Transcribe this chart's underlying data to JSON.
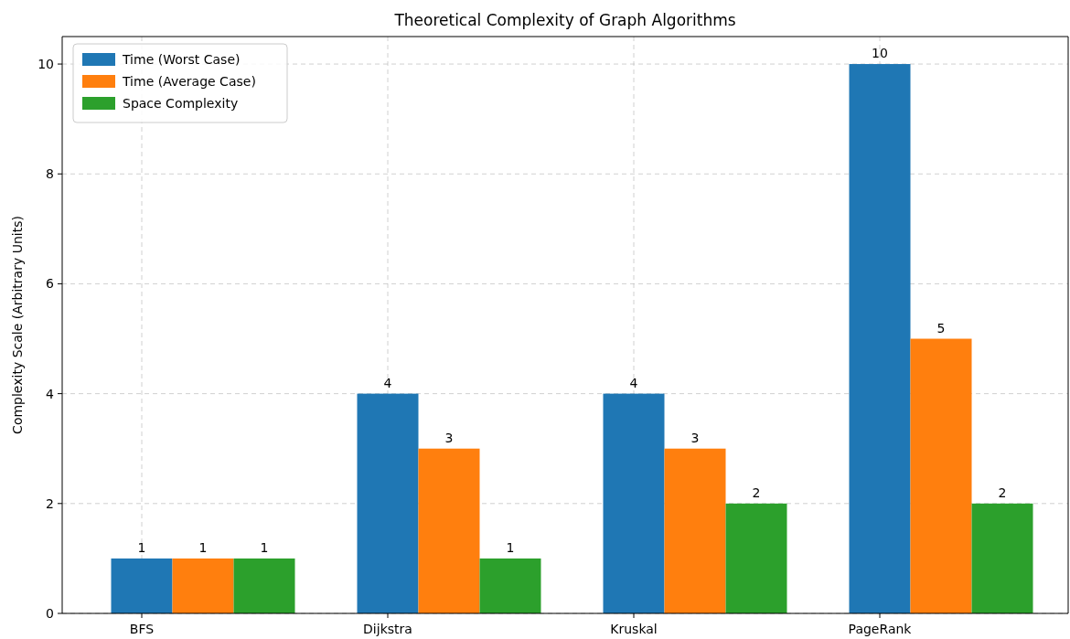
{
  "chart_data": {
    "type": "bar",
    "title": "Theoretical Complexity of Graph Algorithms",
    "ylabel": "Complexity Scale (Arbitrary Units)",
    "categories": [
      "BFS",
      "Dijkstra",
      "Kruskal",
      "PageRank"
    ],
    "series": [
      {
        "name": "Time (Worst Case)",
        "color": "#1f77b4",
        "values": [
          1,
          4,
          4,
          10
        ]
      },
      {
        "name": "Time (Average Case)",
        "color": "#ff7f0e",
        "values": [
          1,
          3,
          3,
          5
        ]
      },
      {
        "name": "Space Complexity",
        "color": "#2ca02c",
        "values": [
          1,
          1,
          2,
          2
        ]
      }
    ],
    "ylim": [
      0,
      10.5
    ],
    "yticks": [
      0,
      2,
      4,
      6,
      8,
      10
    ],
    "grid": true,
    "legend": "top left",
    "data_labels": true
  }
}
